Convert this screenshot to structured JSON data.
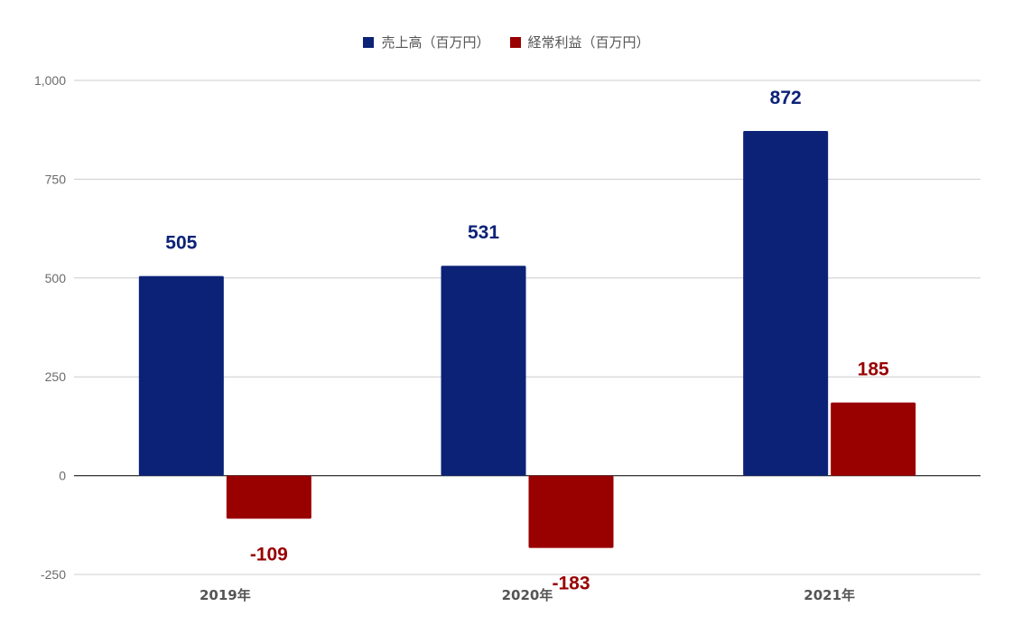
{
  "chart_data": {
    "type": "bar",
    "title": "",
    "xlabel": "",
    "ylabel": "",
    "categories": [
      "2019年",
      "2020年",
      "2021年"
    ],
    "series": [
      {
        "name": "売上高（百万円）",
        "values": [
          505,
          531,
          872
        ],
        "color": "#0b2277"
      },
      {
        "name": "経常利益（百万円）",
        "values": [
          -109,
          -183,
          185
        ],
        "color": "#990000"
      }
    ],
    "ylim": [
      -250,
      1000
    ],
    "yticks": [
      1000,
      750,
      500,
      250,
      0,
      -250
    ],
    "ytick_labels": [
      "1,000",
      "750",
      "500",
      "250",
      "0",
      "-250"
    ],
    "grid": true,
    "legend_position": "top-center",
    "data_labels": true
  }
}
